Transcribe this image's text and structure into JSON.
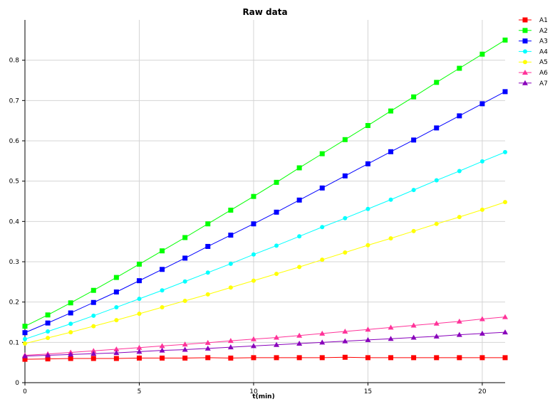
{
  "chart_data": {
    "type": "line",
    "title": "Raw data",
    "xlabel": "t(min)",
    "ylabel": "",
    "xlim": [
      0,
      21
    ],
    "ylim": [
      0,
      0.9
    ],
    "xticks": [
      0,
      5,
      10,
      15,
      20
    ],
    "yticks": [
      0,
      0.1,
      0.2,
      0.3,
      0.4,
      0.5,
      0.6,
      0.7,
      0.8
    ],
    "grid": true,
    "legend_position": "right",
    "x": [
      0,
      1,
      2,
      3,
      4,
      5,
      6,
      7,
      8,
      9,
      10,
      11,
      12,
      13,
      14,
      15,
      16,
      17,
      18,
      19,
      20,
      21
    ],
    "series": [
      {
        "name": "A1",
        "color": "#ff0000",
        "marker": "square",
        "values": [
          0.058,
          0.059,
          0.06,
          0.06,
          0.06,
          0.061,
          0.061,
          0.061,
          0.062,
          0.061,
          0.062,
          0.062,
          0.062,
          0.062,
          0.063,
          0.062,
          0.062,
          0.062,
          0.062,
          0.062,
          0.062,
          0.062
        ]
      },
      {
        "name": "A2",
        "color": "#00ff00",
        "marker": "square",
        "values": [
          0.14,
          0.168,
          0.198,
          0.229,
          0.261,
          0.294,
          0.327,
          0.36,
          0.394,
          0.428,
          0.462,
          0.497,
          0.533,
          0.568,
          0.603,
          0.638,
          0.674,
          0.709,
          0.745,
          0.78,
          0.815,
          0.85
        ]
      },
      {
        "name": "A3",
        "color": "#0000ff",
        "marker": "square",
        "values": [
          0.124,
          0.148,
          0.173,
          0.199,
          0.225,
          0.253,
          0.281,
          0.309,
          0.338,
          0.366,
          0.394,
          0.423,
          0.453,
          0.483,
          0.513,
          0.543,
          0.573,
          0.602,
          0.632,
          0.662,
          0.692,
          0.722
        ]
      },
      {
        "name": "A4",
        "color": "#00ffff",
        "marker": "circle",
        "values": [
          0.108,
          0.127,
          0.146,
          0.166,
          0.187,
          0.208,
          0.229,
          0.251,
          0.273,
          0.295,
          0.318,
          0.34,
          0.363,
          0.386,
          0.408,
          0.431,
          0.454,
          0.478,
          0.502,
          0.525,
          0.549,
          0.572
        ]
      },
      {
        "name": "A5",
        "color": "#ffff00",
        "marker": "circle",
        "values": [
          0.097,
          0.111,
          0.125,
          0.14,
          0.155,
          0.171,
          0.187,
          0.203,
          0.219,
          0.236,
          0.253,
          0.27,
          0.287,
          0.305,
          0.323,
          0.341,
          0.358,
          0.376,
          0.394,
          0.411,
          0.429,
          0.448
        ]
      },
      {
        "name": "A6",
        "color": "#ff3399",
        "marker": "triangle",
        "values": [
          0.068,
          0.071,
          0.075,
          0.079,
          0.083,
          0.087,
          0.091,
          0.095,
          0.099,
          0.104,
          0.108,
          0.112,
          0.117,
          0.122,
          0.127,
          0.132,
          0.137,
          0.142,
          0.147,
          0.152,
          0.158,
          0.163
        ]
      },
      {
        "name": "A7",
        "color": "#8800bb",
        "marker": "triangle",
        "values": [
          0.066,
          0.068,
          0.07,
          0.072,
          0.074,
          0.077,
          0.08,
          0.082,
          0.085,
          0.088,
          0.091,
          0.094,
          0.097,
          0.1,
          0.103,
          0.106,
          0.109,
          0.112,
          0.115,
          0.119,
          0.122,
          0.125
        ]
      }
    ]
  }
}
